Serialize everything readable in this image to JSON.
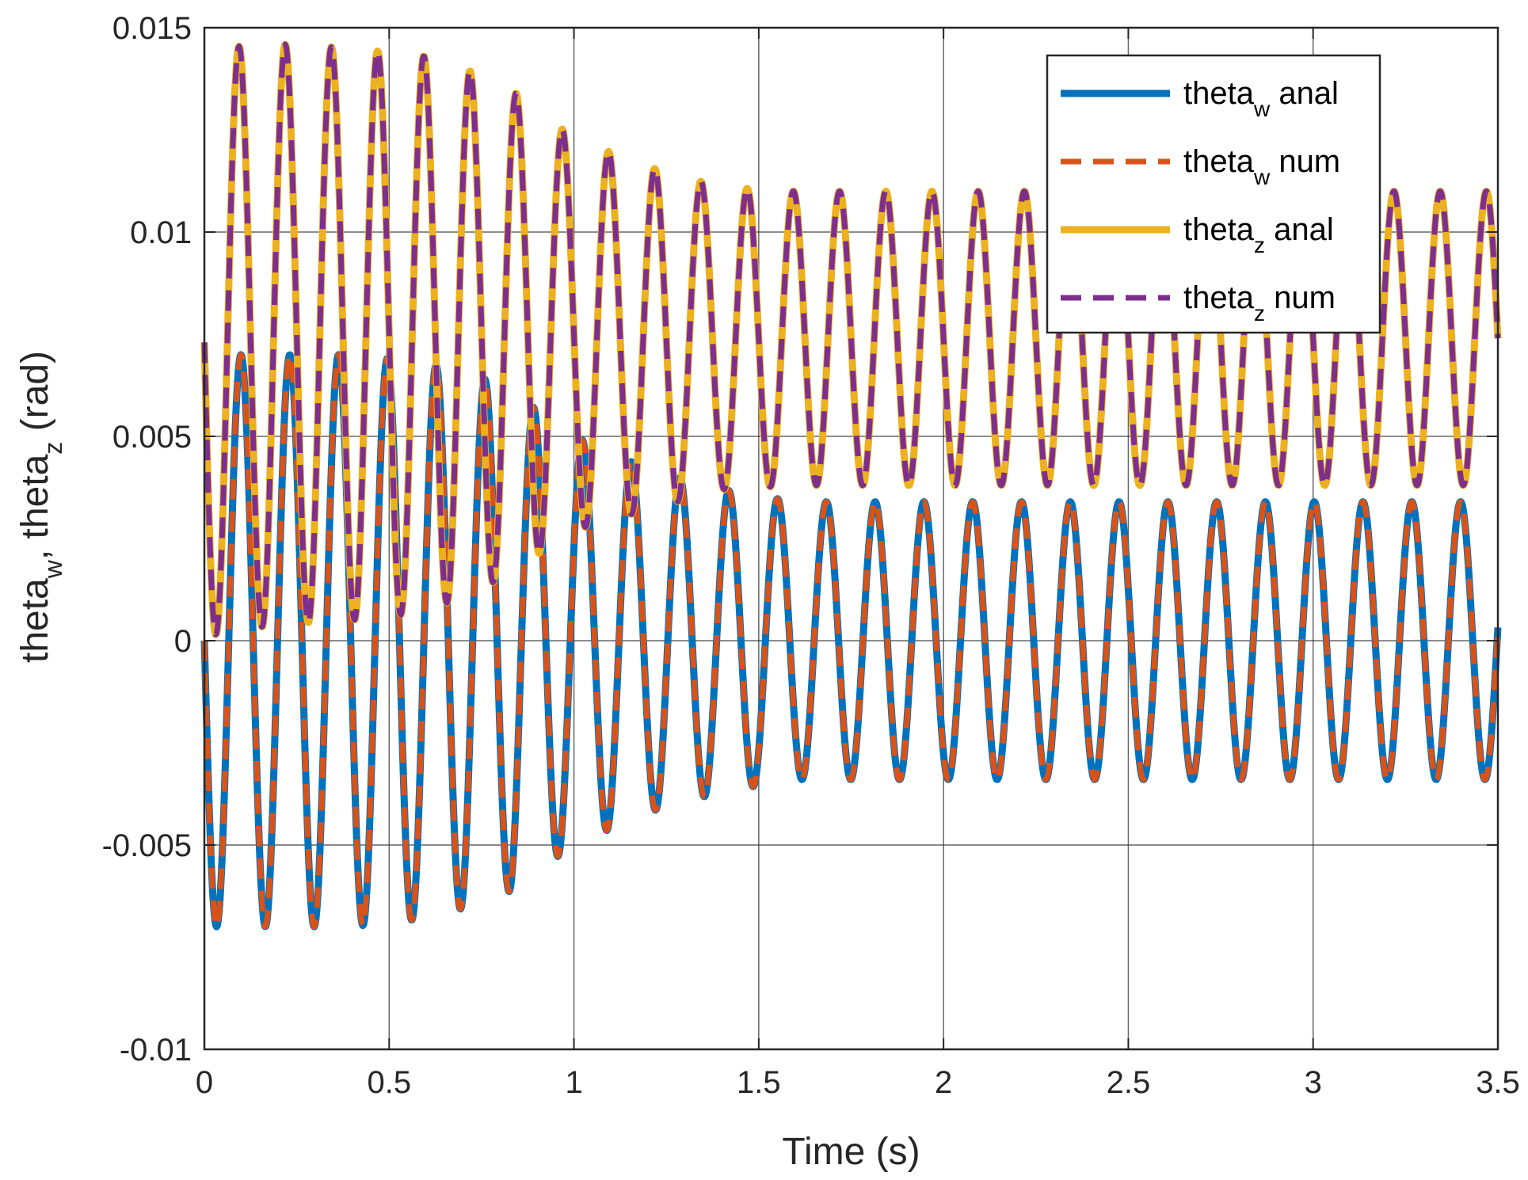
{
  "chart_data": {
    "type": "line",
    "title": "",
    "xlabel": "Time (s)",
    "ylabel": {
      "parts": [
        {
          "text": "theta"
        },
        {
          "text": "w",
          "sub": true
        },
        {
          "text": ", theta"
        },
        {
          "text": "z",
          "sub": true
        },
        {
          "text": " (rad)"
        }
      ]
    },
    "xlim": [
      0,
      3.5
    ],
    "ylim": [
      -0.01,
      0.015
    ],
    "xticks": [
      0,
      0.5,
      1,
      1.5,
      2,
      2.5,
      3,
      3.5
    ],
    "xtick_labels": [
      "0",
      "0.5",
      "1",
      "1.5",
      "2",
      "2.5",
      "3",
      "3.5"
    ],
    "yticks": [
      -0.01,
      -0.005,
      0,
      0.005,
      0.01,
      0.015
    ],
    "ytick_labels": [
      "-0.01",
      "-0.005",
      "0",
      "0.005",
      "0.01",
      "0.015"
    ],
    "grid": true,
    "legend_position": "top-right",
    "series": [
      {
        "name": "theta_w anal",
        "legend": {
          "base": "theta",
          "sub": "w",
          "suffix": " anal"
        },
        "color": "#0072BD",
        "style": "solid",
        "model": {
          "type": "oscillation",
          "t": [
            0,
            0.2,
            0.4,
            0.6,
            0.8,
            1.0,
            1.2,
            1.4,
            1.6,
            3.5
          ],
          "mean": [
            0,
            0,
            0,
            0,
            0,
            0,
            0,
            0,
            0,
            0
          ],
          "amp": [
            0.007,
            0.007,
            0.007,
            0.0068,
            0.0063,
            0.005,
            0.0042,
            0.0037,
            0.0034,
            0.0034
          ],
          "period": 0.132,
          "phase": 0
        }
      },
      {
        "name": "theta_w num",
        "legend": {
          "base": "theta",
          "sub": "w",
          "suffix": " num"
        },
        "color": "#D95319",
        "style": "dashed",
        "model": {
          "type": "oscillation",
          "t": [
            0,
            0.2,
            0.4,
            0.6,
            0.8,
            1.0,
            1.2,
            1.4,
            1.6,
            3.5
          ],
          "mean": [
            0,
            0,
            0,
            0,
            0,
            0,
            0,
            0,
            0,
            0
          ],
          "amp": [
            0.007,
            0.007,
            0.007,
            0.0068,
            0.0063,
            0.005,
            0.0042,
            0.0037,
            0.0034,
            0.0034
          ],
          "period": 0.132,
          "phase": 0
        }
      },
      {
        "name": "theta_z anal",
        "legend": {
          "base": "theta",
          "sub": "z",
          "suffix": " anal"
        },
        "color": "#EDB120",
        "style": "solid",
        "model": {
          "type": "oscillation",
          "t": [
            0,
            0.2,
            0.4,
            0.6,
            0.8,
            1.0,
            1.2,
            1.4,
            1.6,
            3.5
          ],
          "mean": [
            0.0073,
            0.0075,
            0.0075,
            0.0075,
            0.0076,
            0.0075,
            0.0074,
            0.0074,
            0.0074,
            0.0074
          ],
          "amp": [
            0.0072,
            0.0071,
            0.007,
            0.0068,
            0.0061,
            0.0048,
            0.0042,
            0.0037,
            0.0036,
            0.0036
          ],
          "period": 0.125,
          "phase": 0
        }
      },
      {
        "name": "theta_z num",
        "legend": {
          "base": "theta",
          "sub": "z",
          "suffix": " num"
        },
        "color": "#7E2F8E",
        "style": "dashed",
        "model": {
          "type": "oscillation",
          "t": [
            0,
            0.2,
            0.4,
            0.6,
            0.8,
            1.0,
            1.2,
            1.4,
            1.6,
            3.5
          ],
          "mean": [
            0.0073,
            0.0075,
            0.0075,
            0.0075,
            0.0076,
            0.0075,
            0.0074,
            0.0074,
            0.0074,
            0.0074
          ],
          "amp": [
            0.0072,
            0.0071,
            0.007,
            0.0068,
            0.0061,
            0.0048,
            0.0042,
            0.0037,
            0.0036,
            0.0036
          ],
          "period": 0.125,
          "phase": 0
        }
      }
    ]
  }
}
